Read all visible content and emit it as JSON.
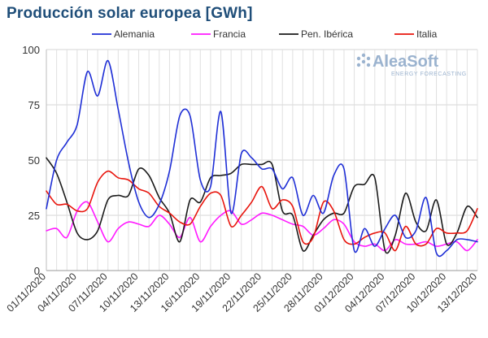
{
  "chart_data": {
    "type": "line",
    "title": "Producción solar europea [GWh]",
    "xlabel": "",
    "ylabel": "",
    "ylim": [
      0,
      100
    ],
    "yticks": [
      0,
      25,
      50,
      75,
      100
    ],
    "grid": true,
    "legend_position": "top",
    "x_tick_labels": [
      "01/11/2020",
      "04/11/2020",
      "07/11/2020",
      "10/11/2020",
      "13/11/2020",
      "16/11/2020",
      "19/11/2020",
      "22/11/2020",
      "25/11/2020",
      "28/11/2020",
      "01/12/2020",
      "04/12/2020",
      "07/12/2020",
      "10/12/2020",
      "13/12/2020"
    ],
    "x": [
      "01/11/2020",
      "02/11/2020",
      "03/11/2020",
      "04/11/2020",
      "05/11/2020",
      "06/11/2020",
      "07/11/2020",
      "08/11/2020",
      "09/11/2020",
      "10/11/2020",
      "11/11/2020",
      "12/11/2020",
      "13/11/2020",
      "14/11/2020",
      "15/11/2020",
      "16/11/2020",
      "17/11/2020",
      "18/11/2020",
      "19/11/2020",
      "20/11/2020",
      "21/11/2020",
      "22/11/2020",
      "23/11/2020",
      "24/11/2020",
      "25/11/2020",
      "26/11/2020",
      "27/11/2020",
      "28/11/2020",
      "29/11/2020",
      "30/11/2020",
      "01/12/2020",
      "02/12/2020",
      "03/12/2020",
      "04/12/2020",
      "05/12/2020",
      "06/12/2020",
      "07/12/2020",
      "08/12/2020",
      "09/12/2020",
      "10/12/2020",
      "11/12/2020",
      "12/12/2020",
      "13/12/2020"
    ],
    "series": [
      {
        "name": "Alemania",
        "color": "#1f2fd6",
        "values": [
          28,
          50,
          58,
          66,
          90,
          79,
          95,
          73,
          49,
          31,
          24,
          30,
          45,
          70,
          70,
          41,
          38,
          72,
          26,
          53,
          51,
          46,
          46,
          37,
          42,
          25,
          34,
          26,
          43,
          46,
          9,
          19,
          11,
          19,
          25,
          15,
          18,
          33,
          8,
          9,
          14,
          14,
          13
        ]
      },
      {
        "name": "Francia",
        "color": "#ff1aff",
        "values": [
          18,
          19,
          15,
          27,
          31,
          22,
          13,
          19,
          22,
          21,
          20,
          25,
          21,
          15,
          24,
          13,
          20,
          25,
          27,
          21,
          23,
          26,
          25,
          23,
          21,
          20,
          16,
          19,
          23,
          21,
          13,
          11,
          12,
          9,
          14,
          12,
          12,
          13,
          11,
          12,
          13,
          9,
          14
        ]
      },
      {
        "name": "Pen. Ibérica",
        "color": "#1a1a1a",
        "values": [
          51,
          44,
          31,
          17,
          14,
          18,
          32,
          34,
          34,
          46,
          43,
          33,
          26,
          13,
          32,
          31,
          42,
          43,
          44,
          48,
          48,
          48,
          48,
          27,
          25,
          9,
          16,
          23,
          26,
          26,
          38,
          39,
          42,
          9,
          16,
          35,
          22,
          18,
          32,
          12,
          17,
          29,
          24
        ]
      },
      {
        "name": "Italia",
        "color": "#e8140c",
        "values": [
          36,
          30,
          30,
          27,
          28,
          40,
          45,
          42,
          41,
          37,
          35,
          29,
          26,
          22,
          21,
          29,
          35,
          34,
          20,
          25,
          31,
          38,
          28,
          32,
          29,
          13,
          15,
          31,
          27,
          14,
          12,
          15,
          17,
          17,
          9,
          20,
          12,
          12,
          19,
          17,
          17,
          18,
          28
        ]
      }
    ]
  },
  "watermark": {
    "brand": "AleaSoft",
    "tagline": "ENERGY FORECASTING"
  }
}
